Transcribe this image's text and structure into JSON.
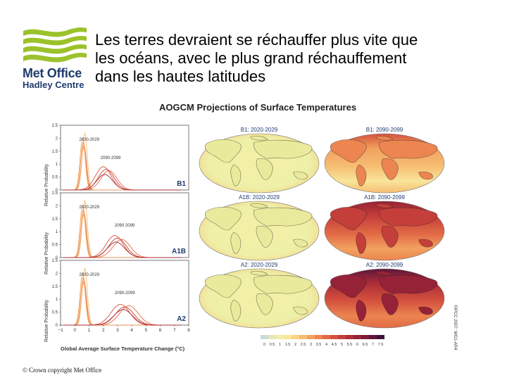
{
  "logo": {
    "line1": "Met Office",
    "line2": "Hadley Centre"
  },
  "slide": {
    "title_lines": [
      "Les terres devraient se réchauffer plus vite que",
      "les océans, avec le plus grand réchauffement",
      "dans les  hautes latitudes"
    ]
  },
  "figure": {
    "title": "AOGCM Projections of Surface Temperatures",
    "y_axis_label": "Relative Probability",
    "x_axis_label": "Global Average Surface Temperature Change (°C)",
    "x_ticks": [
      "−1",
      "0",
      "1",
      "2",
      "3",
      "4",
      "5",
      "6",
      "7",
      "8"
    ],
    "y_ticks": [
      "0",
      "0.5",
      "1",
      "1.5",
      "2",
      "2.5"
    ],
    "panels": [
      {
        "scenario": "B1",
        "label_early": "2020-2029",
        "label_late": "2090-2099"
      },
      {
        "scenario": "A1B",
        "label_early": "2020-2029",
        "label_late": "2090 2099"
      },
      {
        "scenario": "A2",
        "label_early": "2020-2029",
        "label_late": "2090-2099"
      }
    ],
    "map_titles": [
      [
        "B1: 2020-2029",
        "B1: 2090-2099"
      ],
      [
        "A1B: 2020-2029",
        "A1B: 2090-2099"
      ],
      [
        "A2: 2020-2029",
        "A2: 2090-2099"
      ]
    ],
    "colorbar_labels": [
      "0",
      "0.5",
      "1",
      "1.5",
      "2",
      "2.5",
      "3",
      "3.5",
      "4",
      "4.5",
      "5",
      "5.5",
      "6",
      "6.5",
      "7",
      "7.5"
    ],
    "colorbar_colors": [
      "#c9dcd5",
      "#dfe8b8",
      "#f1eeaa",
      "#f8e59a",
      "#f9d487",
      "#f6bd72",
      "#f2a15f",
      "#ec8550",
      "#e26a46",
      "#d5523f",
      "#c43e3a",
      "#ae2e37",
      "#962237",
      "#7c1b3a",
      "#5f173d",
      "#40123a"
    ],
    "credit": "©IPCC 2007: WG1-AR4"
  },
  "footer": {
    "copyright": "© Crown copyright   Met Office"
  }
}
